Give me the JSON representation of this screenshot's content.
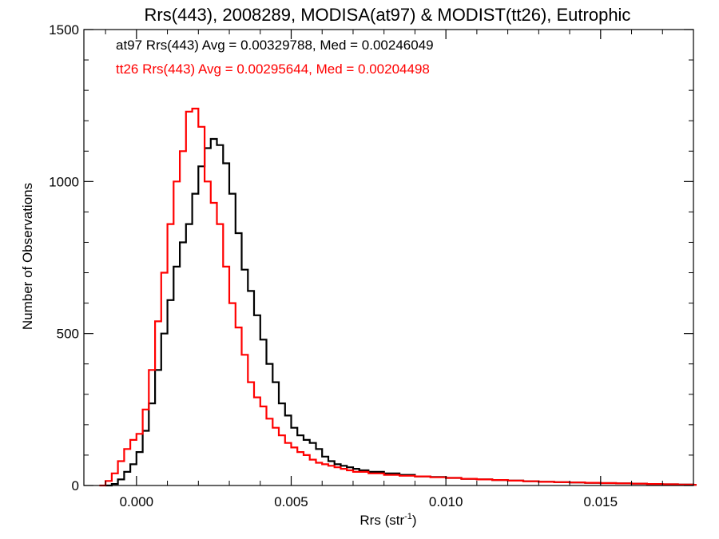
{
  "chart_data": {
    "type": "line",
    "title": "Rrs(443), 2008289, MODISA(at97) & MODIST(tt26), Eutrophic",
    "xlabel_main": "Rrs (str",
    "xlabel_sup": "-1",
    "xlabel_end": ")",
    "ylabel": "Number of Observations",
    "xlim": [
      -0.0017,
      0.018
    ],
    "ylim": [
      0,
      1500
    ],
    "xticks": [
      {
        "value": 0.0,
        "label": "0.000"
      },
      {
        "value": 0.005,
        "label": "0.005"
      },
      {
        "value": 0.01,
        "label": "0.010"
      },
      {
        "value": 0.015,
        "label": "0.015"
      }
    ],
    "yticks": [
      {
        "value": 0,
        "label": "0"
      },
      {
        "value": 500,
        "label": "500"
      },
      {
        "value": 1000,
        "label": "1000"
      },
      {
        "value": 1500,
        "label": "1500"
      }
    ],
    "annotations": [
      {
        "text": "at97 Rrs(443) Avg = 0.00329788, Med = 0.00246049",
        "color": "#000000"
      },
      {
        "text": "tt26 Rrs(443) Avg = 0.00295644, Med = 0.00204498",
        "color": "#ff0000"
      }
    ],
    "series": [
      {
        "name": "at97",
        "color": "#000000",
        "points": [
          [
            -0.001,
            0
          ],
          [
            -0.0008,
            5
          ],
          [
            -0.0006,
            20
          ],
          [
            -0.0004,
            45
          ],
          [
            -0.0002,
            70
          ],
          [
            0.0,
            110
          ],
          [
            0.0002,
            180
          ],
          [
            0.0004,
            270
          ],
          [
            0.0006,
            380
          ],
          [
            0.0008,
            500
          ],
          [
            0.001,
            610
          ],
          [
            0.0012,
            720
          ],
          [
            0.0014,
            800
          ],
          [
            0.0016,
            860
          ],
          [
            0.0018,
            960
          ],
          [
            0.002,
            1050
          ],
          [
            0.0022,
            1110
          ],
          [
            0.0024,
            1140
          ],
          [
            0.0026,
            1120
          ],
          [
            0.0028,
            1060
          ],
          [
            0.003,
            960
          ],
          [
            0.0032,
            830
          ],
          [
            0.0034,
            710
          ],
          [
            0.0036,
            640
          ],
          [
            0.0038,
            560
          ],
          [
            0.004,
            480
          ],
          [
            0.0042,
            400
          ],
          [
            0.0044,
            340
          ],
          [
            0.0046,
            270
          ],
          [
            0.0048,
            230
          ],
          [
            0.005,
            190
          ],
          [
            0.0052,
            165
          ],
          [
            0.0054,
            150
          ],
          [
            0.0056,
            140
          ],
          [
            0.0058,
            120
          ],
          [
            0.006,
            95
          ],
          [
            0.0062,
            80
          ],
          [
            0.0064,
            70
          ],
          [
            0.0066,
            65
          ],
          [
            0.0068,
            60
          ],
          [
            0.007,
            55
          ],
          [
            0.0072,
            50
          ],
          [
            0.0075,
            45
          ],
          [
            0.008,
            40
          ],
          [
            0.0085,
            35
          ],
          [
            0.009,
            30
          ],
          [
            0.0095,
            28
          ],
          [
            0.01,
            25
          ],
          [
            0.0105,
            22
          ],
          [
            0.011,
            20
          ],
          [
            0.0115,
            18
          ],
          [
            0.012,
            16
          ],
          [
            0.0125,
            14
          ],
          [
            0.013,
            12
          ],
          [
            0.0135,
            11
          ],
          [
            0.014,
            10
          ],
          [
            0.0145,
            9
          ],
          [
            0.015,
            8
          ],
          [
            0.0155,
            7
          ],
          [
            0.016,
            6
          ],
          [
            0.0165,
            5
          ],
          [
            0.017,
            4
          ],
          [
            0.0175,
            3
          ],
          [
            0.018,
            2
          ]
        ]
      },
      {
        "name": "tt26",
        "color": "#ff0000",
        "points": [
          [
            -0.0012,
            0
          ],
          [
            -0.001,
            15
          ],
          [
            -0.0008,
            40
          ],
          [
            -0.0006,
            80
          ],
          [
            -0.0004,
            120
          ],
          [
            -0.0002,
            150
          ],
          [
            0.0,
            170
          ],
          [
            0.0002,
            250
          ],
          [
            0.0004,
            380
          ],
          [
            0.0006,
            540
          ],
          [
            0.0008,
            700
          ],
          [
            0.001,
            860
          ],
          [
            0.0012,
            1000
          ],
          [
            0.0014,
            1100
          ],
          [
            0.0016,
            1230
          ],
          [
            0.0018,
            1240
          ],
          [
            0.002,
            1180
          ],
          [
            0.0022,
            1000
          ],
          [
            0.0024,
            930
          ],
          [
            0.0026,
            860
          ],
          [
            0.0028,
            720
          ],
          [
            0.003,
            600
          ],
          [
            0.0032,
            520
          ],
          [
            0.0034,
            430
          ],
          [
            0.0036,
            340
          ],
          [
            0.0038,
            290
          ],
          [
            0.004,
            260
          ],
          [
            0.0042,
            220
          ],
          [
            0.0044,
            190
          ],
          [
            0.0046,
            165
          ],
          [
            0.0048,
            140
          ],
          [
            0.005,
            125
          ],
          [
            0.0052,
            110
          ],
          [
            0.0054,
            100
          ],
          [
            0.0056,
            85
          ],
          [
            0.0058,
            75
          ],
          [
            0.006,
            70
          ],
          [
            0.0062,
            65
          ],
          [
            0.0064,
            60
          ],
          [
            0.0066,
            55
          ],
          [
            0.0068,
            50
          ],
          [
            0.007,
            45
          ],
          [
            0.0075,
            40
          ],
          [
            0.008,
            35
          ],
          [
            0.0085,
            32
          ],
          [
            0.009,
            30
          ],
          [
            0.0095,
            27
          ],
          [
            0.01,
            25
          ],
          [
            0.0105,
            22
          ],
          [
            0.011,
            20
          ],
          [
            0.0115,
            18
          ],
          [
            0.012,
            16
          ],
          [
            0.0125,
            14
          ],
          [
            0.013,
            12
          ],
          [
            0.0135,
            11
          ],
          [
            0.014,
            10
          ],
          [
            0.0145,
            9
          ],
          [
            0.015,
            8
          ],
          [
            0.0155,
            7
          ],
          [
            0.016,
            6
          ],
          [
            0.0165,
            5
          ],
          [
            0.017,
            4
          ],
          [
            0.0175,
            3
          ],
          [
            0.018,
            2
          ]
        ]
      }
    ]
  }
}
